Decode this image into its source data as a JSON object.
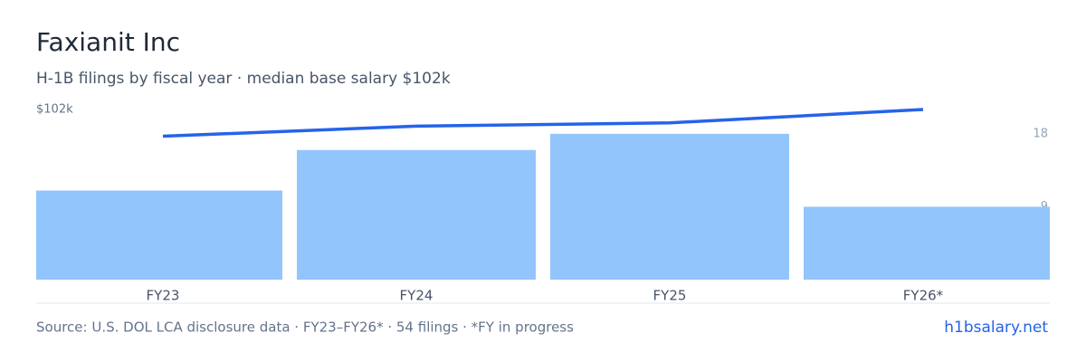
{
  "chart_data": {
    "type": "bar",
    "title": "Faxianit Inc",
    "subtitle": "H-1B filings by fiscal year · median base salary $102k",
    "categories": [
      "FY23",
      "FY24",
      "FY25",
      "FY26*"
    ],
    "series": [
      {
        "type": "bar",
        "color": "#93c5fd",
        "values": [
          11,
          16,
          18,
          9
        ],
        "axis": "y2"
      },
      {
        "type": "line",
        "color": "#2563eb",
        "values": [
          86000,
          92000,
          94000,
          102000
        ]
      }
    ],
    "ylim": [
      0,
      102000
    ],
    "yticks": [
      {
        "value": 102000,
        "label": "$102k"
      }
    ],
    "y2lim": [
      0,
      21
    ],
    "y2ticks": [
      9,
      18
    ],
    "source": "Source: U.S. DOL LCA disclosure data · FY23–FY26* · 54 filings · *FY in progress",
    "site": "h1bsalary.net"
  }
}
